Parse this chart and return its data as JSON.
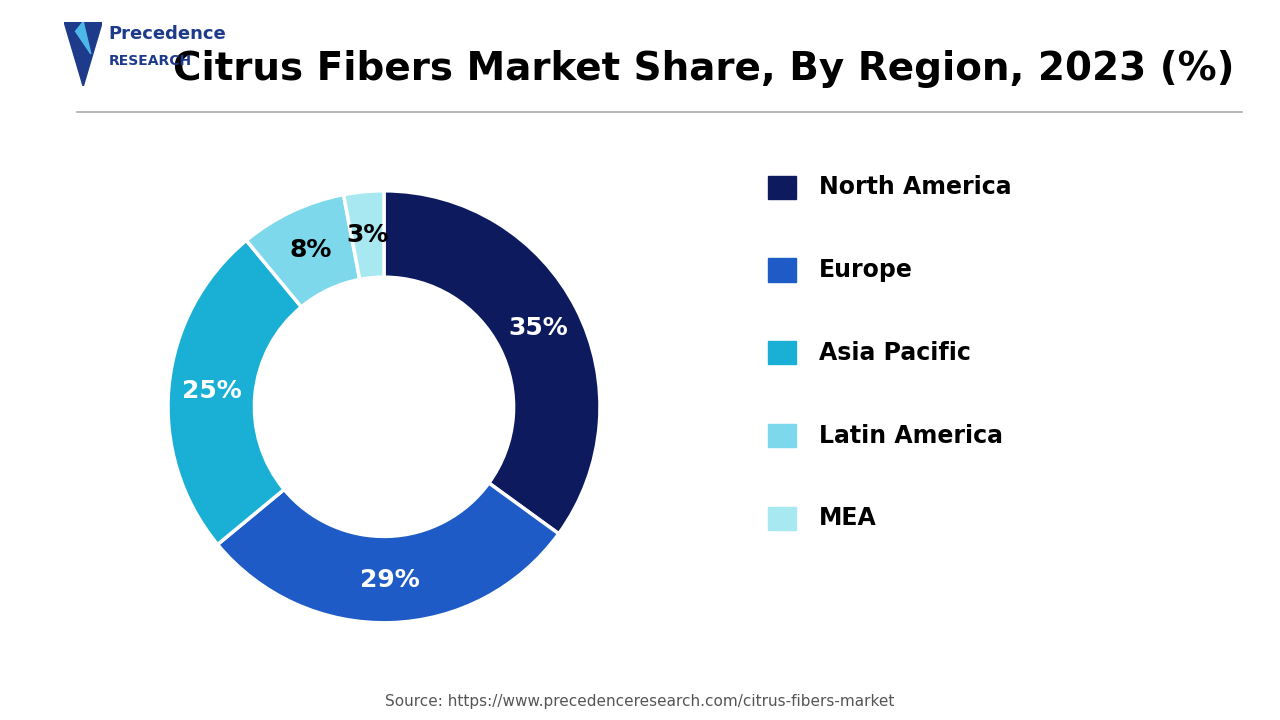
{
  "title": "Citrus Fibers Market Share, By Region, 2023 (%)",
  "values": [
    35,
    29,
    25,
    8,
    3
  ],
  "labels": [
    "North America",
    "Europe",
    "Asia Pacific",
    "Latin America",
    "MEA"
  ],
  "colors": [
    "#0d1b5e",
    "#1e5bc6",
    "#1ab0d5",
    "#7dd8eb",
    "#a8e8f0"
  ],
  "pct_labels": [
    "35%",
    "29%",
    "25%",
    "8%",
    "3%"
  ],
  "pct_colors": [
    "white",
    "white",
    "white",
    "black",
    "black"
  ],
  "donut_width": 0.4,
  "background_color": "#ffffff",
  "title_fontsize": 28,
  "title_color": "#000000",
  "legend_fontsize": 17,
  "pct_fontsize": 18,
  "source_text": "Source: https://www.precedenceresearch.com/citrus-fibers-market",
  "start_angle": 90
}
